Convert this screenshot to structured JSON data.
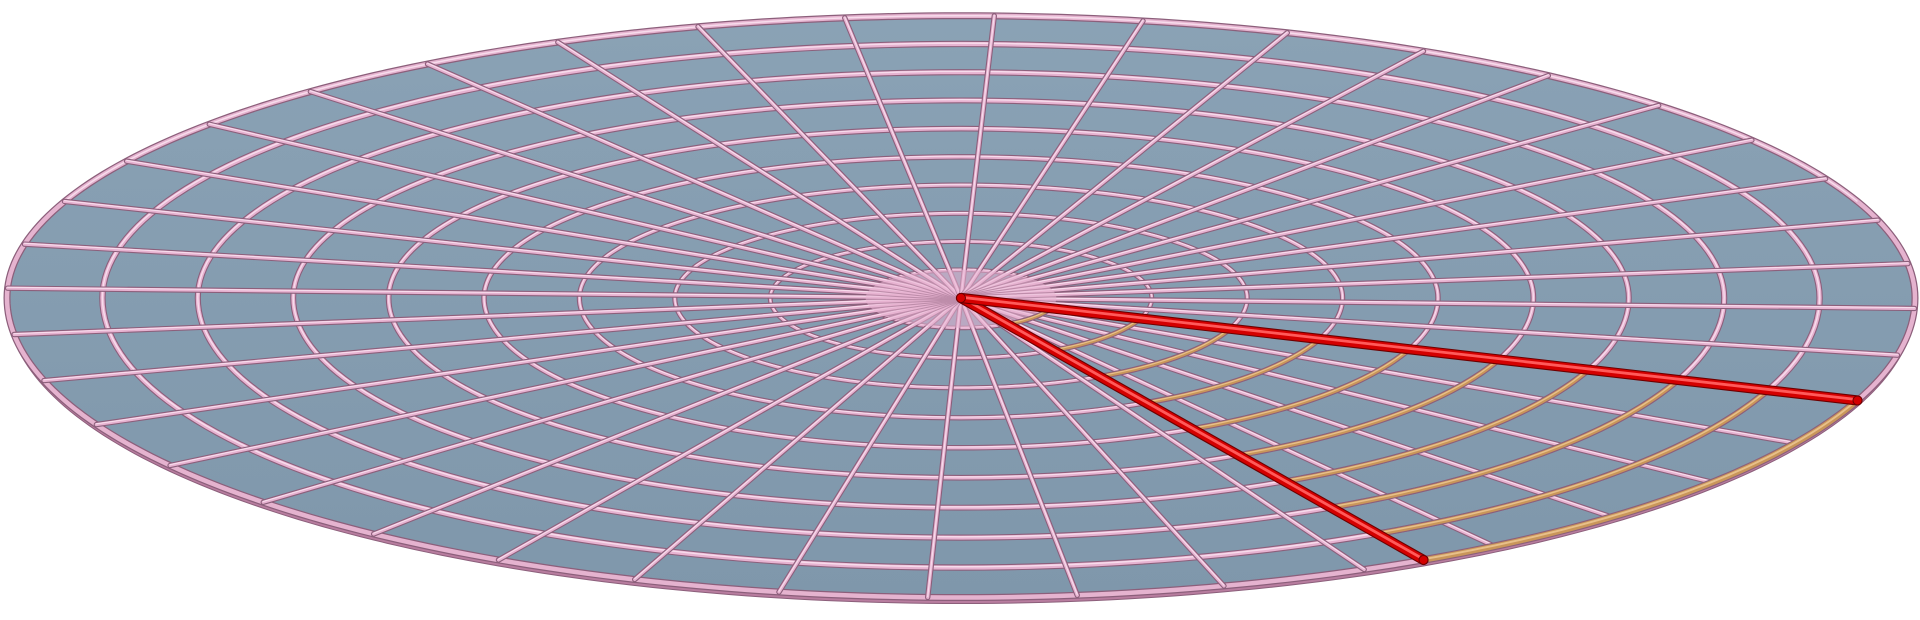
{
  "figure": {
    "kind": "3d-polar-grid-disk",
    "colors": {
      "background": "#ffffff",
      "disk_fill": "#7f97ab",
      "disk_fill_light": "#8aa2b5",
      "grid_tube": "#e7b3d1",
      "grid_tube_highlight": "#f7dcec",
      "grid_tube_shadow": "#8c5f7b",
      "rim_top": "#e5b3cf",
      "rim_side": "#b87d9f",
      "wedge_edge": "#d40000",
      "wedge_edge_highlight": "#ff5a5a",
      "wedge_arc": "#c9965a",
      "wedge_arc_highlight": "#e8c08a"
    },
    "grid": {
      "radial_line_count": 40,
      "concentric_ring_count": 10
    },
    "highlighted_wedge": {
      "edge_count": 2,
      "arc_count": 10
    }
  }
}
